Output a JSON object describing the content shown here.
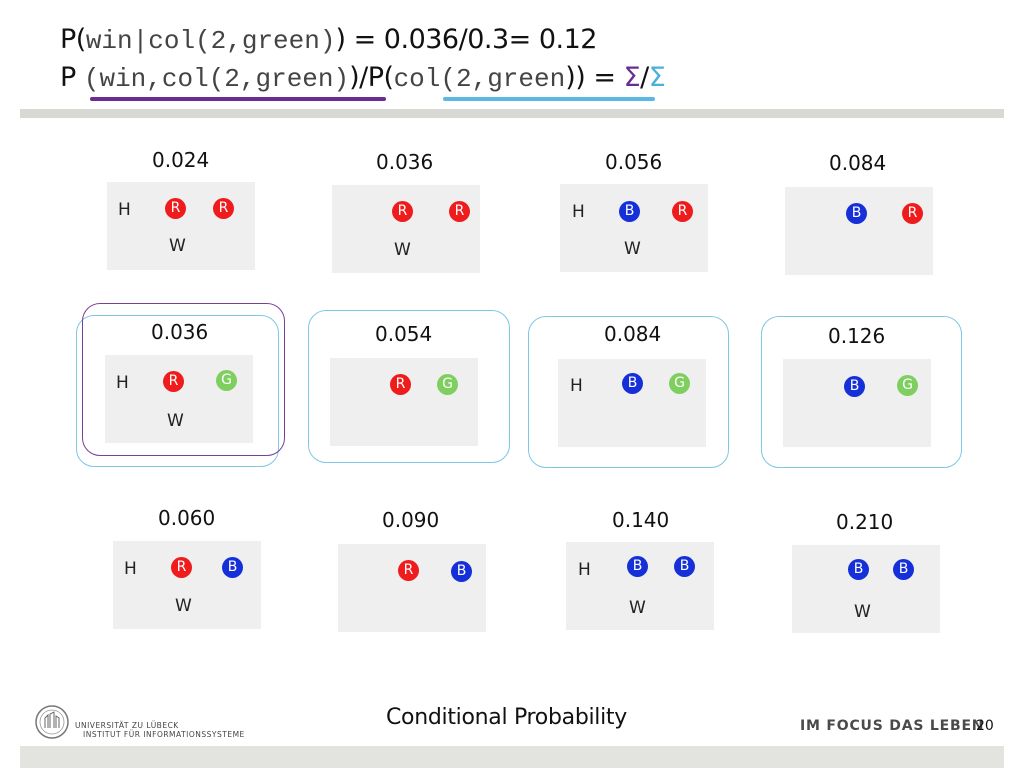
{
  "header": {
    "line1": {
      "p": "P(",
      "mono": "win|col(2,green)",
      "close": ")",
      "rest": " = 0.036/0.3= 0.12"
    },
    "line2": {
      "p": "P ",
      "mono1": "(win,col(2,green)",
      "mid": ")/P(",
      "mono2": "col(2,green",
      "close": "))",
      "eq": " = ",
      "sigma1": "Σ",
      "slash": "/",
      "sigma2": "Σ"
    }
  },
  "grid": [
    {
      "prob": "0.024",
      "h": "H",
      "w": "W",
      "b1": {
        "t": "R",
        "c": "red"
      },
      "b2": {
        "t": "R",
        "c": "red"
      }
    },
    {
      "prob": "0.036",
      "h": "",
      "w": "W",
      "b1": {
        "t": "R",
        "c": "red"
      },
      "b2": {
        "t": "R",
        "c": "red"
      }
    },
    {
      "prob": "0.056",
      "h": "H",
      "w": "W",
      "b1": {
        "t": "B",
        "c": "blue"
      },
      "b2": {
        "t": "R",
        "c": "red"
      }
    },
    {
      "prob": "0.084",
      "h": "",
      "w": "",
      "b1": {
        "t": "B",
        "c": "blue"
      },
      "b2": {
        "t": "R",
        "c": "red"
      }
    },
    {
      "prob": "0.036",
      "h": "H",
      "w": "W",
      "b1": {
        "t": "R",
        "c": "red"
      },
      "b2": {
        "t": "G",
        "c": "green"
      }
    },
    {
      "prob": "0.054",
      "h": "",
      "w": "",
      "b1": {
        "t": "R",
        "c": "red"
      },
      "b2": {
        "t": "G",
        "c": "green"
      }
    },
    {
      "prob": "0.084",
      "h": "H",
      "w": "",
      "b1": {
        "t": "B",
        "c": "blue"
      },
      "b2": {
        "t": "G",
        "c": "green"
      }
    },
    {
      "prob": "0.126",
      "h": "",
      "w": "",
      "b1": {
        "t": "B",
        "c": "blue"
      },
      "b2": {
        "t": "G",
        "c": "green"
      }
    },
    {
      "prob": "0.060",
      "h": "H",
      "w": "W",
      "b1": {
        "t": "R",
        "c": "red"
      },
      "b2": {
        "t": "B",
        "c": "blue"
      }
    },
    {
      "prob": "0.090",
      "h": "",
      "w": "",
      "b1": {
        "t": "R",
        "c": "red"
      },
      "b2": {
        "t": "B",
        "c": "blue"
      }
    },
    {
      "prob": "0.140",
      "h": "H",
      "w": "W",
      "b1": {
        "t": "B",
        "c": "blue"
      },
      "b2": {
        "t": "B",
        "c": "blue"
      }
    },
    {
      "prob": "0.210",
      "h": "",
      "w": "W",
      "b1": {
        "t": "B",
        "c": "blue"
      },
      "b2": {
        "t": "B",
        "c": "blue"
      }
    }
  ],
  "footer": {
    "title": "Conditional Probability",
    "uni_line1": "UNIVERSITÄT ZU LÜBECK",
    "uni_line2": "INSTITUT FÜR INFORMATIONSSYSTEME",
    "motto": "IM FOCUS DAS LEBEN",
    "page": "20"
  },
  "colors": {
    "red": "#ee1c1c",
    "blue": "#1530d8",
    "green": "#7fcf60",
    "purple": "#6a2c91",
    "cyan": "#5bb8e0"
  }
}
